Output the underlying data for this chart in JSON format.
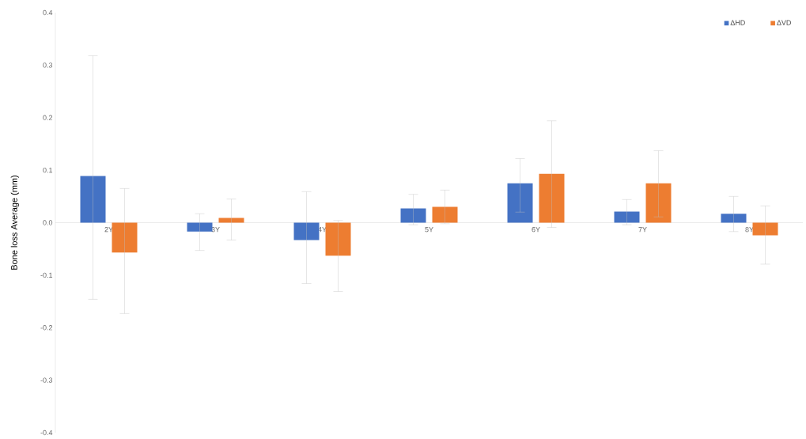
{
  "chart_data": {
    "type": "bar",
    "ylabel": "Bone loss Average (mm)",
    "categories": [
      "2Y",
      "3Y",
      "4Y",
      "5Y",
      "6Y",
      "7Y",
      "8Y"
    ],
    "series": [
      {
        "name": "ΔHD",
        "color": "#4472c4",
        "values": [
          0.089,
          -0.017,
          -0.033,
          0.027,
          0.075,
          0.021,
          0.017
        ],
        "errors": [
          [
            -0.146,
            0.318
          ],
          [
            -0.053,
            0.017
          ],
          [
            -0.116,
            0.059
          ],
          [
            -0.004,
            0.054
          ],
          [
            0.02,
            0.122
          ],
          [
            -0.004,
            0.044
          ],
          [
            -0.017,
            0.05
          ]
        ]
      },
      {
        "name": "ΔVD",
        "color": "#ed7d31",
        "values": [
          -0.057,
          0.009,
          -0.063,
          0.03,
          0.093,
          0.075,
          -0.024
        ],
        "errors": [
          [
            -0.173,
            0.065
          ],
          [
            -0.033,
            0.045
          ],
          [
            -0.131,
            0.004
          ],
          [
            -0.002,
            0.062
          ],
          [
            -0.009,
            0.194
          ],
          [
            0.011,
            0.137
          ],
          [
            -0.079,
            0.032
          ]
        ]
      }
    ],
    "ylim": [
      -0.4,
      0.4
    ],
    "yticks": [
      -0.4,
      -0.3,
      -0.2,
      -0.1,
      {
        "value": 0,
        "label": "0.0"
      },
      0.1,
      0.2,
      0.3,
      0.4
    ],
    "grid": false,
    "legend": "top right"
  }
}
